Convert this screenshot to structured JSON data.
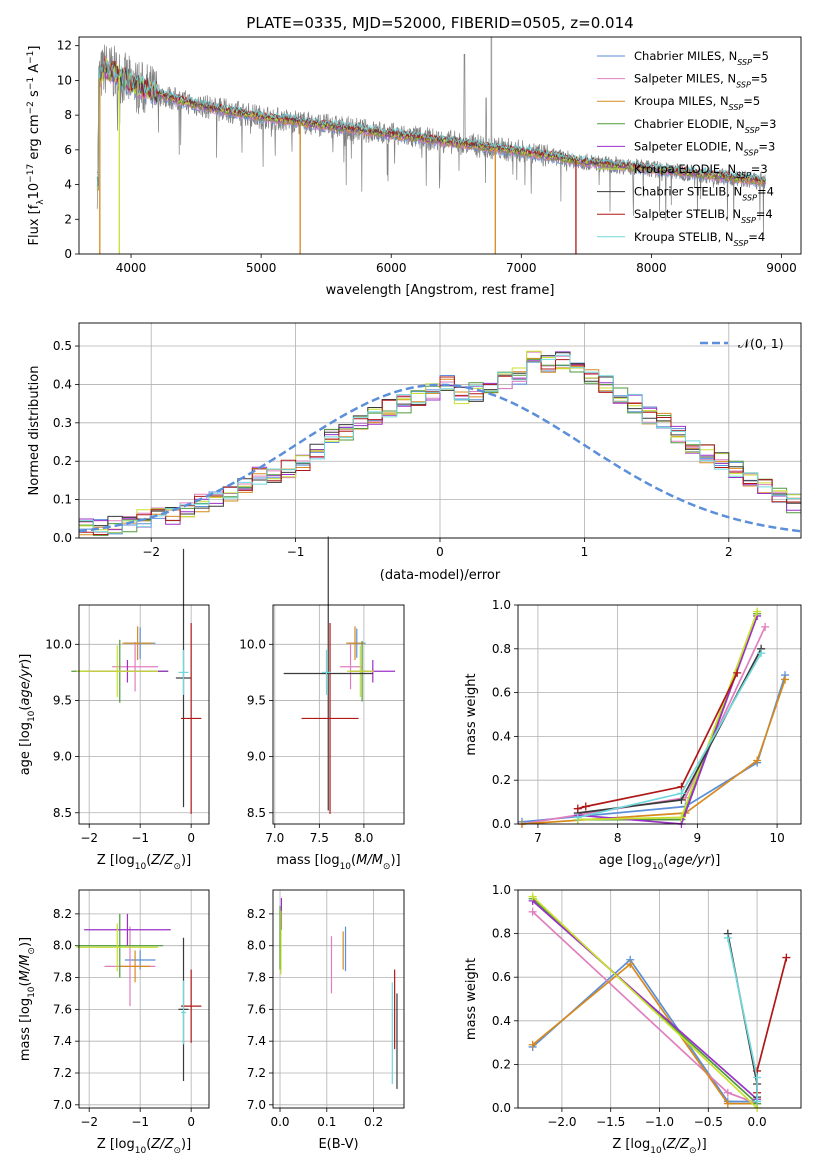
{
  "title": "PLATE=0335, MJD=52000, FIBERID=0505, z=0.014",
  "colors": {
    "Chabrier MILES": "#5b8fd9",
    "Salpeter MILES": "#e07fbf",
    "Kroupa MILES": "#d68a1e",
    "Chabrier ELODIE": "#4e9a3c",
    "Salpeter ELODIE": "#9b30c8",
    "Kroupa ELODIE": "#c8e030",
    "Chabrier STELIB": "#3a3a3a",
    "Salpeter STELIB": "#b01818",
    "Kroupa STELIB": "#70d8dc",
    "data": "#808080",
    "gaussian": "#5b8fd9"
  },
  "chart_data": [
    {
      "id": "spectrum",
      "type": "line",
      "xlabel": "wavelength [Angstrom, rest frame]",
      "ylabel": "Flux [fλ10⁻¹⁷ erg cm⁻² s⁻¹ A⁻¹]",
      "xlim": [
        3600,
        9150
      ],
      "ylim": [
        0,
        12.5
      ],
      "xticks": [
        "4000",
        "5000",
        "6000",
        "7000",
        "8000",
        "9000"
      ],
      "yticks": [
        "0",
        "2",
        "4",
        "6",
        "8",
        "10",
        "12"
      ],
      "grid": false,
      "legend_position": "top-right",
      "legend": [
        {
          "label": "Chabrier MILES, N",
          "sub": "SSP",
          "suffix": "=5"
        },
        {
          "label": "Salpeter MILES, N",
          "sub": "SSP",
          "suffix": "=5"
        },
        {
          "label": "Kroupa MILES, N",
          "sub": "SSP",
          "suffix": "=5"
        },
        {
          "label": "Chabrier ELODIE, N",
          "sub": "SSP",
          "suffix": "=3"
        },
        {
          "label": "Salpeter ELODIE, N",
          "sub": "SSP",
          "suffix": "=3"
        },
        {
          "label": "Kroupa ELODIE, N",
          "sub": "SSP",
          "suffix": "=3"
        },
        {
          "label": "Chabrier STELIB, N",
          "sub": "SSP",
          "suffix": "=4"
        },
        {
          "label": "Salpeter STELIB, N",
          "sub": "SSP",
          "suffix": "=4"
        },
        {
          "label": "Kroupa STELIB, N",
          "sub": "SSP",
          "suffix": "=4"
        }
      ],
      "model_continuum": [
        [
          3750,
          10.0
        ],
        [
          3800,
          10.7
        ],
        [
          3900,
          10.3
        ],
        [
          4000,
          9.8
        ],
        [
          4100,
          9.5
        ],
        [
          4300,
          9.0
        ],
        [
          4500,
          8.6
        ],
        [
          4700,
          8.3
        ],
        [
          5000,
          7.9
        ],
        [
          5300,
          7.6
        ],
        [
          5600,
          7.3
        ],
        [
          6000,
          6.9
        ],
        [
          6500,
          6.4
        ],
        [
          7000,
          5.9
        ],
        [
          7500,
          5.3
        ],
        [
          8000,
          4.9
        ],
        [
          8500,
          4.5
        ],
        [
          8850,
          4.2
        ]
      ]
    },
    {
      "id": "residuals",
      "type": "bar",
      "xlabel": "(data-model)/error",
      "ylabel": "Normed distribution",
      "xlim": [
        -2.5,
        2.5
      ],
      "ylim": [
        0,
        0.56
      ],
      "xticks": [
        "−2",
        "−1",
        "0",
        "1",
        "2"
      ],
      "yticks": [
        "0.0",
        "0.1",
        "0.2",
        "0.3",
        "0.4",
        "0.5"
      ],
      "grid": true,
      "legend_position": "top-right",
      "legend": "𝒩(0, 1)",
      "bin_width": 0.1,
      "histogram": [
        0.03,
        0.025,
        0.035,
        0.04,
        0.05,
        0.06,
        0.06,
        0.07,
        0.09,
        0.1,
        0.12,
        0.14,
        0.16,
        0.16,
        0.18,
        0.2,
        0.23,
        0.26,
        0.28,
        0.3,
        0.32,
        0.34,
        0.35,
        0.37,
        0.38,
        0.4,
        0.37,
        0.38,
        0.4,
        0.41,
        0.42,
        0.48,
        0.45,
        0.46,
        0.44,
        0.42,
        0.4,
        0.37,
        0.35,
        0.32,
        0.3,
        0.27,
        0.24,
        0.22,
        0.2,
        0.18,
        0.15,
        0.13,
        0.11,
        0.09,
        0.08,
        0.08,
        0.07,
        0.06,
        0.05,
        0.04,
        0.04,
        0.03,
        0.02,
        0.02
      ]
    },
    {
      "id": "age-vs-z",
      "type": "scatter",
      "xlabel": "Z [log10(Z/Z⊙)]",
      "ylabel": "age [log10(age/yr)]",
      "xlim": [
        -2.2,
        0.35
      ],
      "ylim": [
        8.4,
        10.35
      ],
      "xticks": [
        "−2",
        "−1",
        "0"
      ],
      "yticks": [
        "8.5",
        "9.0",
        "9.5",
        "10.0"
      ],
      "grid": true,
      "points": [
        {
          "model": "Chabrier MILES",
          "x": -1.0,
          "xerr": 0.3,
          "y": 10.01,
          "yerr": 0.14
        },
        {
          "model": "Salpeter MILES",
          "x": -1.1,
          "xerr": 0.45,
          "y": 9.8,
          "yerr": 0.22
        },
        {
          "model": "Kroupa MILES",
          "x": -1.05,
          "xerr": 0.3,
          "y": 10.01,
          "yerr": 0.15
        },
        {
          "model": "Chabrier ELODIE",
          "x": -1.4,
          "xerr": 0.95,
          "y": 9.76,
          "yerr": 0.28
        },
        {
          "model": "Salpeter ELODIE",
          "x": -1.25,
          "xerr": 0.8,
          "y": 9.76,
          "yerr": 0.1
        },
        {
          "model": "Kroupa ELODIE",
          "x": -1.45,
          "xerr": 0.8,
          "y": 9.76,
          "yerr": 0.23
        },
        {
          "model": "Chabrier STELIB",
          "x": -0.15,
          "xerr": 0.15,
          "y": 9.7,
          "yerr": 1.15
        },
        {
          "model": "Salpeter STELIB",
          "x": 0.0,
          "xerr": 0.2,
          "y": 9.34,
          "yerr": 0.85
        },
        {
          "model": "Kroupa STELIB",
          "x": -0.15,
          "xerr": 0.1,
          "y": 9.75,
          "yerr": 0.2
        }
      ]
    },
    {
      "id": "age-vs-mass",
      "type": "scatter",
      "xlabel": "mass [log10(M/M⊙)]",
      "ylabel": "",
      "xlim": [
        6.98,
        8.45
      ],
      "ylim": [
        8.4,
        10.35
      ],
      "xticks": [
        "7.0",
        "7.5",
        "8.0"
      ],
      "yticks": [
        "8.5",
        "9.0",
        "9.5",
        "10.0"
      ],
      "grid": true,
      "points": [
        {
          "model": "Chabrier MILES",
          "x": 7.92,
          "xerr": 0.1,
          "y": 10.01,
          "yerr": 0.13
        },
        {
          "model": "Salpeter MILES",
          "x": 7.85,
          "xerr": 0.12,
          "y": 9.8,
          "yerr": 0.2
        },
        {
          "model": "Kroupa MILES",
          "x": 7.9,
          "xerr": 0.1,
          "y": 10.01,
          "yerr": 0.15
        },
        {
          "model": "Chabrier ELODIE",
          "x": 7.98,
          "xerr": 0.08,
          "y": 9.76,
          "yerr": 0.27
        },
        {
          "model": "Salpeter ELODIE",
          "x": 8.1,
          "xerr": 0.25,
          "y": 9.76,
          "yerr": 0.1
        },
        {
          "model": "Kroupa ELODIE",
          "x": 7.96,
          "xerr": 0.15,
          "y": 9.76,
          "yerr": 0.23
        },
        {
          "model": "Chabrier STELIB",
          "x": 7.6,
          "xerr": 0.5,
          "y": 9.74,
          "yerr": 1.22
        },
        {
          "model": "Salpeter STELIB",
          "x": 7.62,
          "xerr": 0.32,
          "y": 9.34,
          "yerr": 0.85
        },
        {
          "model": "Kroupa STELIB",
          "x": 7.58,
          "xerr": 0.05,
          "y": 9.75,
          "yerr": 0.2
        }
      ]
    },
    {
      "id": "weight-vs-age",
      "type": "line",
      "xlabel": "age [log10(age/yr)]",
      "ylabel": "mass weight",
      "xlim": [
        6.75,
        10.3
      ],
      "ylim": [
        0,
        1
      ],
      "xticks": [
        "7",
        "8",
        "9",
        "10"
      ],
      "yticks": [
        "0.0",
        "0.2",
        "0.4",
        "0.6",
        "0.8",
        "1.0"
      ],
      "grid": true,
      "series": [
        {
          "model": "Chabrier MILES",
          "x": [
            6.8,
            8.85,
            9.75,
            10.1
          ],
          "y": [
            0.01,
            0.08,
            0.28,
            0.68
          ]
        },
        {
          "model": "Salpeter MILES",
          "x": [
            6.8,
            8.85,
            9.85
          ],
          "y": [
            0.0,
            0.12,
            0.9
          ]
        },
        {
          "model": "Kroupa MILES",
          "x": [
            6.8,
            8.85,
            9.75,
            10.1
          ],
          "y": [
            0.0,
            0.05,
            0.29,
            0.66
          ]
        },
        {
          "model": "Chabrier ELODIE",
          "x": [
            7.5,
            8.8,
            9.75
          ],
          "y": [
            0.02,
            0.02,
            0.96
          ]
        },
        {
          "model": "Salpeter ELODIE",
          "x": [
            7.5,
            8.8,
            9.75
          ],
          "y": [
            0.04,
            0.0,
            0.95
          ]
        },
        {
          "model": "Kroupa ELODIE",
          "x": [
            7.5,
            8.8,
            9.75
          ],
          "y": [
            0.02,
            0.03,
            0.97
          ]
        },
        {
          "model": "Chabrier STELIB",
          "x": [
            7.5,
            8.8,
            9.8
          ],
          "y": [
            0.05,
            0.11,
            0.8
          ]
        },
        {
          "model": "Salpeter STELIB",
          "x": [
            7.5,
            7.6,
            8.8,
            9.5
          ],
          "y": [
            0.07,
            0.08,
            0.17,
            0.69
          ]
        },
        {
          "model": "Kroupa STELIB",
          "x": [
            7.5,
            8.8,
            9.8
          ],
          "y": [
            0.03,
            0.14,
            0.78
          ]
        }
      ]
    },
    {
      "id": "mass-vs-z",
      "type": "scatter",
      "xlabel": "Z [log10(Z/Z⊙)]",
      "ylabel": "mass [log10(M/M⊙)]",
      "xlim": [
        -2.2,
        0.35
      ],
      "ylim": [
        6.98,
        8.35
      ],
      "xticks": [
        "−2",
        "−1",
        "0"
      ],
      "yticks": [
        "7.0",
        "7.2",
        "7.4",
        "7.6",
        "7.8",
        "8.0",
        "8.2"
      ],
      "grid": true,
      "points": [
        {
          "model": "Chabrier MILES",
          "x": -1.0,
          "xerr": 0.3,
          "y": 7.91,
          "yerr": 0.06
        },
        {
          "model": "Salpeter MILES",
          "x": -1.2,
          "xerr": 0.5,
          "y": 7.87,
          "yerr": 0.25
        },
        {
          "model": "Kroupa MILES",
          "x": -1.1,
          "xerr": 0.3,
          "y": 7.87,
          "yerr": 0.1
        },
        {
          "model": "Chabrier ELODIE",
          "x": -1.4,
          "xerr": 0.85,
          "y": 8.0,
          "yerr": 0.2
        },
        {
          "model": "Salpeter ELODIE",
          "x": -1.25,
          "xerr": 0.85,
          "y": 8.1,
          "yerr": 0.1
        },
        {
          "model": "Kroupa ELODIE",
          "x": -1.45,
          "xerr": 0.8,
          "y": 7.99,
          "yerr": 0.15
        },
        {
          "model": "Chabrier STELIB",
          "x": -0.15,
          "xerr": 0.1,
          "y": 7.6,
          "yerr": 0.45
        },
        {
          "model": "Salpeter STELIB",
          "x": 0.0,
          "xerr": 0.2,
          "y": 7.62,
          "yerr": 0.23
        },
        {
          "model": "Kroupa STELIB",
          "x": -0.15,
          "xerr": 0.05,
          "y": 7.58,
          "yerr": 0.2
        }
      ]
    },
    {
      "id": "mass-vs-ebv",
      "type": "scatter",
      "xlabel": "E(B-V)",
      "ylabel": "",
      "xlim": [
        -0.015,
        0.265
      ],
      "ylim": [
        6.98,
        8.35
      ],
      "xticks": [
        "0.0",
        "0.1",
        "0.2"
      ],
      "yticks": [
        "7.0",
        "7.2",
        "7.4",
        "7.6",
        "7.8",
        "8.0",
        "8.2"
      ],
      "grid": true,
      "points": [
        {
          "model": "Chabrier MILES",
          "x": 0.14,
          "y": 7.98,
          "yerr": 0.14
        },
        {
          "model": "Salpeter MILES",
          "x": 0.11,
          "y": 7.88,
          "yerr": 0.18
        },
        {
          "model": "Kroupa MILES",
          "x": 0.135,
          "y": 7.97,
          "yerr": 0.12
        },
        {
          "model": "Chabrier ELODIE",
          "x": 0.0,
          "y": 8.05,
          "yerr": 0.2
        },
        {
          "model": "Salpeter ELODIE",
          "x": 0.003,
          "y": 8.2,
          "yerr": 0.1
        },
        {
          "model": "Kroupa ELODIE",
          "x": 0.002,
          "y": 8.02,
          "yerr": 0.2
        },
        {
          "model": "Chabrier STELIB",
          "x": 0.25,
          "y": 7.4,
          "yerr": 0.3
        },
        {
          "model": "Salpeter STELIB",
          "x": 0.245,
          "y": 7.6,
          "yerr": 0.25
        },
        {
          "model": "Kroupa STELIB",
          "x": 0.24,
          "y": 7.45,
          "yerr": 0.32
        }
      ]
    },
    {
      "id": "weight-vs-z",
      "type": "line",
      "xlabel": "Z [log10(Z/Z⊙)]",
      "ylabel": "mass weight",
      "xlim": [
        -2.45,
        0.45
      ],
      "ylim": [
        0,
        1
      ],
      "xticks": [
        "−2.0",
        "−1.5",
        "−1.0",
        "−0.5",
        "0.0"
      ],
      "yticks": [
        "0.0",
        "0.2",
        "0.4",
        "0.6",
        "0.8",
        "1.0"
      ],
      "grid": true,
      "series": [
        {
          "model": "Chabrier MILES",
          "x": [
            -2.3,
            -1.3,
            -0.3,
            0.0
          ],
          "y": [
            0.28,
            0.68,
            0.03,
            0.03
          ]
        },
        {
          "model": "Salpeter MILES",
          "x": [
            -2.3,
            -0.3,
            0.0
          ],
          "y": [
            0.9,
            0.07,
            0.02
          ]
        },
        {
          "model": "Kroupa MILES",
          "x": [
            -2.3,
            -1.3,
            -0.3,
            0.0
          ],
          "y": [
            0.29,
            0.66,
            0.02,
            0.02
          ]
        },
        {
          "model": "Chabrier ELODIE",
          "x": [
            -2.3,
            0.0
          ],
          "y": [
            0.96,
            0.02
          ]
        },
        {
          "model": "Salpeter ELODIE",
          "x": [
            -2.3,
            0.0
          ],
          "y": [
            0.95,
            0.04
          ]
        },
        {
          "model": "Kroupa ELODIE",
          "x": [
            -2.3,
            0.0
          ],
          "y": [
            0.97,
            0.0
          ]
        },
        {
          "model": "Chabrier STELIB",
          "x": [
            -0.3,
            0.0,
            0.0
          ],
          "y": [
            0.8,
            0.11,
            0.05
          ]
        },
        {
          "model": "Salpeter STELIB",
          "x": [
            0.0,
            0.0,
            0.3
          ],
          "y": [
            0.07,
            0.17,
            0.69
          ]
        },
        {
          "model": "Kroupa STELIB",
          "x": [
            -0.3,
            0.0,
            0.0
          ],
          "y": [
            0.78,
            0.14,
            0.03
          ]
        }
      ]
    }
  ]
}
